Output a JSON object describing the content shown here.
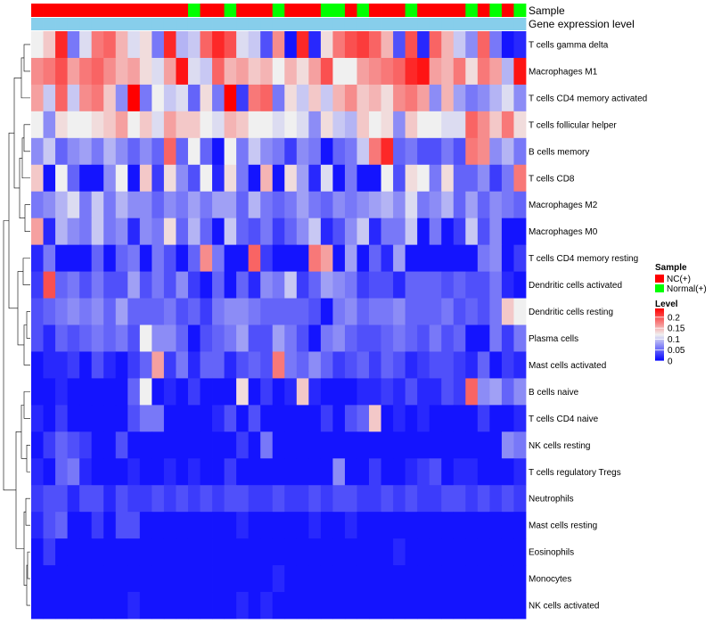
{
  "chart_data": {
    "type": "heatmap",
    "title": "",
    "rows": [
      "T cells gamma delta",
      "Macrophages M1",
      "T cells CD4 memory activated",
      "T cells follicular helper",
      "B cells memory",
      "T cells CD8",
      "Macrophages M2",
      "Macrophages M0",
      "T cells CD4 memory resting",
      "Dendritic cells activated",
      "Dendritic cells resting",
      "Plasma cells",
      "Mast cells activated",
      "B cells naive",
      "T cells CD4 naive",
      "NK cells resting",
      "T cells regulatory  Tregs",
      "Neutrophils",
      "Mast cells resting",
      "Eosinophils",
      "Monocytes",
      "NK cells activated"
    ],
    "n_columns": 41,
    "sample_annotation": {
      "title": "Sample",
      "groups": [
        "NC",
        "NC",
        "NC",
        "NC",
        "NC",
        "NC",
        "NC",
        "NC",
        "NC",
        "NC",
        "NC",
        "NC",
        "NC",
        "Normal",
        "NC",
        "NC",
        "Normal",
        "NC",
        "NC",
        "NC",
        "Normal",
        "NC",
        "NC",
        "NC",
        "Normal",
        "Normal",
        "NC",
        "Normal",
        "NC",
        "NC",
        "NC",
        "Normal",
        "NC",
        "NC",
        "NC",
        "NC",
        "Normal",
        "NC",
        "Normal",
        "NC",
        "Normal"
      ]
    },
    "gene_annotation": {
      "title": "Gene expression level",
      "value": "constant"
    },
    "values": [
      [
        0.12,
        0.14,
        0.22,
        0.06,
        0.11,
        0.18,
        0.19,
        0.15,
        0.11,
        0.13,
        0.06,
        0.22,
        0.09,
        0.1,
        0.19,
        0.22,
        0.2,
        0.11,
        0.1,
        0.04,
        0.17,
        0.01,
        0.22,
        0.02,
        0.13,
        0.18,
        0.2,
        0.21,
        0.19,
        0.15,
        0.04,
        0.2,
        0.02,
        0.19,
        0.15,
        0.1,
        0.07,
        0.19,
        0.06,
        0.01,
        0.02
      ],
      [
        0.17,
        0.18,
        0.2,
        0.16,
        0.18,
        0.19,
        0.17,
        0.15,
        0.16,
        0.13,
        0.11,
        0.16,
        0.23,
        0.11,
        0.1,
        0.19,
        0.15,
        0.16,
        0.14,
        0.15,
        0.12,
        0.15,
        0.13,
        0.16,
        0.2,
        0.12,
        0.12,
        0.16,
        0.17,
        0.18,
        0.19,
        0.22,
        0.23,
        0.16,
        0.15,
        0.18,
        0.13,
        0.18,
        0.16,
        0.09,
        0.23
      ],
      [
        0.16,
        0.1,
        0.19,
        0.1,
        0.17,
        0.18,
        0.14,
        0.07,
        0.24,
        0.06,
        0.12,
        0.1,
        0.11,
        0.05,
        0.13,
        0.06,
        0.24,
        0.03,
        0.18,
        0.19,
        0.06,
        0.13,
        0.1,
        0.14,
        0.1,
        0.15,
        0.17,
        0.14,
        0.15,
        0.13,
        0.17,
        0.18,
        0.16,
        0.07,
        0.15,
        0.08,
        0.06,
        0.07,
        0.09,
        0.11,
        0.07
      ],
      [
        0.12,
        0.07,
        0.13,
        0.12,
        0.12,
        0.13,
        0.14,
        0.16,
        0.12,
        0.14,
        0.11,
        0.16,
        0.14,
        0.14,
        0.12,
        0.11,
        0.15,
        0.14,
        0.12,
        0.12,
        0.11,
        0.12,
        0.11,
        0.07,
        0.13,
        0.1,
        0.09,
        0.14,
        0.12,
        0.13,
        0.07,
        0.14,
        0.12,
        0.12,
        0.11,
        0.11,
        0.19,
        0.17,
        0.14,
        0.18,
        0.13
      ],
      [
        0.07,
        0.1,
        0.05,
        0.07,
        0.08,
        0.06,
        0.09,
        0.07,
        0.05,
        0.07,
        0.05,
        0.19,
        0.05,
        0.12,
        0.05,
        0.01,
        0.12,
        0.06,
        0.1,
        0.07,
        0.06,
        0.03,
        0.07,
        0.06,
        0.01,
        0.05,
        0.06,
        0.1,
        0.18,
        0.22,
        0.05,
        0.06,
        0.04,
        0.04,
        0.06,
        0.04,
        0.18,
        0.17,
        0.07,
        0.09,
        0.06
      ],
      [
        0.14,
        0.01,
        0.12,
        0.05,
        0.01,
        0.01,
        0.07,
        0.12,
        0.01,
        0.14,
        0.03,
        0.13,
        0.07,
        0.04,
        0.12,
        0.02,
        0.13,
        0.06,
        0.01,
        0.15,
        0.01,
        0.13,
        0.08,
        0.02,
        0.11,
        0.01,
        0.06,
        0.01,
        0.01,
        0.12,
        0.04,
        0.13,
        0.12,
        0.06,
        0.13,
        0.05,
        0.05,
        0.07,
        0.03,
        0.06,
        0.18
      ],
      [
        0.06,
        0.07,
        0.09,
        0.11,
        0.06,
        0.1,
        0.06,
        0.09,
        0.07,
        0.07,
        0.05,
        0.07,
        0.06,
        0.08,
        0.06,
        0.08,
        0.08,
        0.05,
        0.09,
        0.06,
        0.05,
        0.06,
        0.08,
        0.06,
        0.05,
        0.07,
        0.06,
        0.07,
        0.08,
        0.09,
        0.07,
        0.11,
        0.06,
        0.07,
        0.09,
        0.05,
        0.08,
        0.05,
        0.07,
        0.06,
        0.05
      ],
      [
        0.16,
        0.02,
        0.09,
        0.07,
        0.06,
        0.1,
        0.06,
        0.07,
        0.02,
        0.07,
        0.06,
        0.13,
        0.05,
        0.09,
        0.05,
        0.01,
        0.1,
        0.05,
        0.04,
        0.06,
        0.03,
        0.05,
        0.07,
        0.1,
        0.02,
        0.04,
        0.07,
        0.1,
        0.02,
        0.06,
        0.06,
        0.1,
        0.01,
        0.06,
        0.01,
        0.03,
        0.1,
        0.04,
        0.07,
        0.01,
        0.01
      ],
      [
        0.02,
        0.06,
        0.01,
        0.01,
        0.01,
        0.05,
        0.01,
        0.05,
        0.06,
        0.01,
        0.06,
        0.04,
        0.01,
        0.05,
        0.17,
        0.06,
        0.01,
        0.01,
        0.19,
        0.03,
        0.01,
        0.01,
        0.01,
        0.18,
        0.16,
        0.01,
        0.08,
        0.01,
        0.05,
        0.02,
        0.08,
        0.01,
        0.01,
        0.01,
        0.01,
        0.01,
        0.01,
        0.06,
        0.07,
        0.01,
        0.03
      ],
      [
        0.03,
        0.2,
        0.05,
        0.06,
        0.04,
        0.06,
        0.04,
        0.04,
        0.08,
        0.04,
        0.06,
        0.04,
        0.07,
        0.03,
        0.01,
        0.05,
        0.01,
        0.05,
        0.02,
        0.07,
        0.06,
        0.1,
        0.03,
        0.05,
        0.08,
        0.07,
        0.06,
        0.03,
        0.04,
        0.04,
        0.02,
        0.05,
        0.05,
        0.05,
        0.04,
        0.05,
        0.04,
        0.04,
        0.06,
        0.02,
        0.01
      ],
      [
        0.04,
        0.05,
        0.06,
        0.07,
        0.06,
        0.07,
        0.05,
        0.08,
        0.05,
        0.05,
        0.05,
        0.06,
        0.04,
        0.05,
        0.03,
        0.06,
        0.07,
        0.07,
        0.06,
        0.05,
        0.05,
        0.05,
        0.05,
        0.04,
        0.01,
        0.06,
        0.07,
        0.05,
        0.06,
        0.06,
        0.07,
        0.05,
        0.05,
        0.05,
        0.06,
        0.04,
        0.05,
        0.04,
        0.06,
        0.14,
        0.12
      ],
      [
        0.04,
        0.02,
        0.05,
        0.04,
        0.05,
        0.06,
        0.05,
        0.06,
        0.04,
        0.12,
        0.07,
        0.07,
        0.05,
        0.01,
        0.04,
        0.05,
        0.06,
        0.08,
        0.04,
        0.04,
        0.08,
        0.06,
        0.04,
        0.01,
        0.06,
        0.07,
        0.05,
        0.04,
        0.04,
        0.05,
        0.06,
        0.05,
        0.04,
        0.06,
        0.04,
        0.05,
        0.01,
        0.01,
        0.06,
        0.03,
        0.06
      ],
      [
        0.01,
        0.02,
        0.02,
        0.03,
        0.01,
        0.04,
        0.02,
        0.01,
        0.03,
        0.05,
        0.16,
        0.03,
        0.06,
        0.02,
        0.05,
        0.05,
        0.02,
        0.04,
        0.05,
        0.04,
        0.18,
        0.06,
        0.05,
        0.07,
        0.05,
        0.03,
        0.04,
        0.05,
        0.03,
        0.05,
        0.04,
        0.02,
        0.03,
        0.04,
        0.04,
        0.03,
        0.02,
        0.05,
        0.01,
        0.03,
        0.02
      ],
      [
        0.01,
        0.01,
        0.02,
        0.01,
        0.01,
        0.01,
        0.01,
        0.01,
        0.05,
        0.12,
        0.01,
        0.02,
        0.01,
        0.03,
        0.01,
        0.01,
        0.01,
        0.13,
        0.01,
        0.03,
        0.01,
        0.02,
        0.14,
        0.02,
        0.01,
        0.01,
        0.01,
        0.02,
        0.02,
        0.03,
        0.02,
        0.04,
        0.02,
        0.02,
        0.04,
        0.03,
        0.19,
        0.07,
        0.08,
        0.05,
        0.07
      ],
      [
        0.02,
        0.01,
        0.03,
        0.01,
        0.01,
        0.01,
        0.01,
        0.01,
        0.04,
        0.06,
        0.06,
        0.01,
        0.01,
        0.01,
        0.01,
        0.02,
        0.04,
        0.01,
        0.04,
        0.01,
        0.01,
        0.01,
        0.01,
        0.01,
        0.03,
        0.01,
        0.04,
        0.05,
        0.14,
        0.01,
        0.02,
        0.01,
        0.02,
        0.01,
        0.01,
        0.01,
        0.01,
        0.03,
        0.01,
        0.01,
        0.02
      ],
      [
        0.01,
        0.03,
        0.05,
        0.04,
        0.03,
        0.01,
        0.01,
        0.04,
        0.01,
        0.01,
        0.01,
        0.01,
        0.01,
        0.01,
        0.01,
        0.01,
        0.01,
        0.03,
        0.01,
        0.06,
        0.01,
        0.01,
        0.01,
        0.01,
        0.01,
        0.01,
        0.01,
        0.01,
        0.01,
        0.01,
        0.01,
        0.01,
        0.01,
        0.01,
        0.01,
        0.01,
        0.01,
        0.01,
        0.01,
        0.07,
        0.06
      ],
      [
        0.02,
        0.01,
        0.05,
        0.06,
        0.02,
        0.01,
        0.01,
        0.01,
        0.02,
        0.01,
        0.01,
        0.02,
        0.01,
        0.02,
        0.01,
        0.01,
        0.03,
        0.01,
        0.01,
        0.01,
        0.01,
        0.01,
        0.01,
        0.01,
        0.01,
        0.07,
        0.01,
        0.01,
        0.03,
        0.01,
        0.01,
        0.02,
        0.03,
        0.04,
        0.01,
        0.02,
        0.02,
        0.01,
        0.01,
        0.01,
        0.02
      ],
      [
        0.03,
        0.04,
        0.04,
        0.02,
        0.04,
        0.04,
        0.02,
        0.04,
        0.03,
        0.03,
        0.04,
        0.03,
        0.04,
        0.03,
        0.04,
        0.03,
        0.04,
        0.04,
        0.03,
        0.03,
        0.04,
        0.03,
        0.03,
        0.04,
        0.03,
        0.04,
        0.04,
        0.03,
        0.03,
        0.04,
        0.03,
        0.04,
        0.03,
        0.03,
        0.04,
        0.04,
        0.03,
        0.04,
        0.03,
        0.04,
        0.03
      ],
      [
        0.02,
        0.04,
        0.05,
        0.01,
        0.01,
        0.03,
        0.01,
        0.04,
        0.04,
        0.01,
        0.01,
        0.01,
        0.01,
        0.01,
        0.01,
        0.01,
        0.01,
        0.02,
        0.01,
        0.01,
        0.01,
        0.01,
        0.01,
        0.02,
        0.01,
        0.01,
        0.02,
        0.01,
        0.01,
        0.01,
        0.01,
        0.01,
        0.01,
        0.01,
        0.01,
        0.01,
        0.01,
        0.01,
        0.01,
        0.01,
        0.01
      ],
      [
        0.01,
        0.03,
        0.01,
        0.01,
        0.01,
        0.01,
        0.01,
        0.01,
        0.01,
        0.01,
        0.01,
        0.01,
        0.01,
        0.01,
        0.01,
        0.01,
        0.01,
        0.01,
        0.01,
        0.01,
        0.01,
        0.01,
        0.01,
        0.01,
        0.01,
        0.01,
        0.01,
        0.01,
        0.01,
        0.01,
        0.02,
        0.01,
        0.01,
        0.01,
        0.01,
        0.01,
        0.01,
        0.01,
        0.01,
        0.01,
        0.01
      ],
      [
        0.01,
        0.01,
        0.01,
        0.01,
        0.01,
        0.01,
        0.01,
        0.01,
        0.01,
        0.01,
        0.01,
        0.01,
        0.01,
        0.01,
        0.01,
        0.01,
        0.01,
        0.01,
        0.01,
        0.01,
        0.02,
        0.01,
        0.01,
        0.01,
        0.01,
        0.01,
        0.01,
        0.01,
        0.01,
        0.01,
        0.01,
        0.01,
        0.01,
        0.01,
        0.01,
        0.01,
        0.01,
        0.01,
        0.01,
        0.01,
        0.01
      ],
      [
        0.01,
        0.01,
        0.01,
        0.01,
        0.01,
        0.01,
        0.01,
        0.01,
        0.02,
        0.01,
        0.01,
        0.01,
        0.01,
        0.01,
        0.01,
        0.01,
        0.01,
        0.02,
        0.01,
        0.02,
        0.01,
        0.01,
        0.01,
        0.01,
        0.01,
        0.01,
        0.01,
        0.01,
        0.01,
        0.01,
        0.01,
        0.01,
        0.01,
        0.01,
        0.01,
        0.01,
        0.01,
        0.01,
        0.01,
        0.01,
        0.01
      ]
    ],
    "color_scale": {
      "low": "#0000FF",
      "mid": "#F0F0F0",
      "high": "#FF0000",
      "min": 0,
      "max": 0.24
    },
    "legend": {
      "sample": {
        "title": "Sample",
        "items": [
          {
            "label": "NC(+)",
            "color": "#FF0000",
            "key": "NC"
          },
          {
            "label": "Normal(+)",
            "color": "#00FF00",
            "key": "Normal"
          }
        ]
      },
      "level": {
        "title": "Level",
        "ticks": [
          {
            "label": "0.2",
            "value": 0.2
          },
          {
            "label": "0.15",
            "value": 0.15
          },
          {
            "label": "0.1",
            "value": 0.1
          },
          {
            "label": "0.05",
            "value": 0.05
          },
          {
            "label": "0",
            "value": 0
          }
        ]
      }
    },
    "gene_color": "#87CEEB",
    "dendrogram": "row clustering (left side)"
  }
}
